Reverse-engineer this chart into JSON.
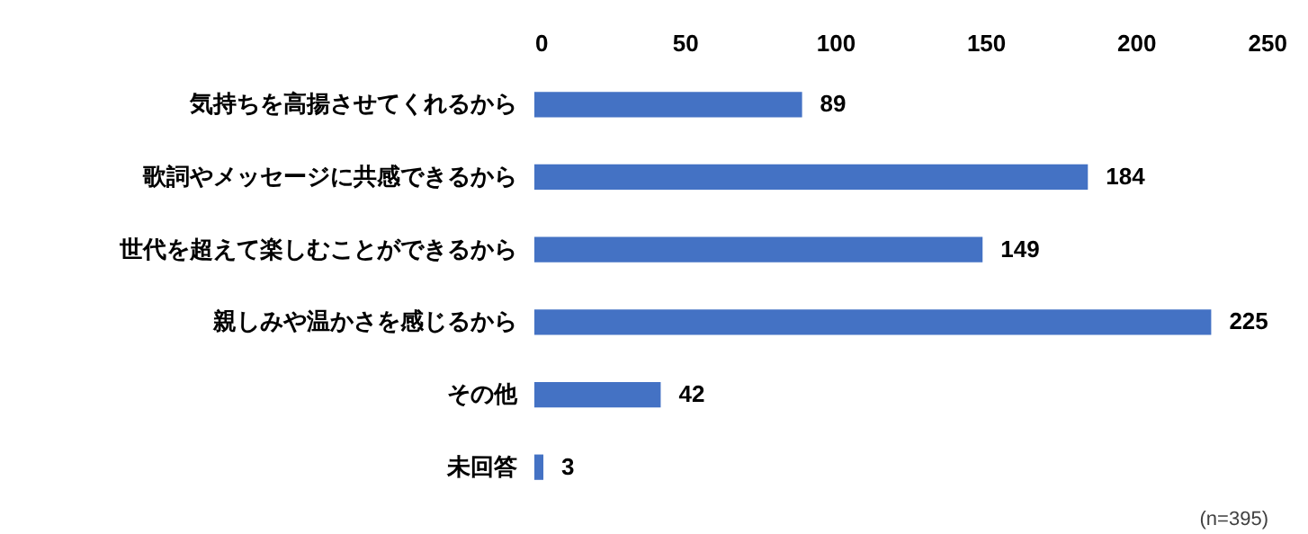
{
  "chart_data": {
    "type": "bar",
    "orientation": "horizontal",
    "categories": [
      "気持ちを高揚させてくれるから",
      "歌詞やメッセージに共感できるから",
      "世代を超えて楽しむことができるから",
      "親しみや温かさを感じるから",
      "その他",
      "未回答"
    ],
    "values": [
      89,
      184,
      149,
      225,
      42,
      3
    ],
    "color": "#4472c4",
    "xlim": [
      0,
      250
    ],
    "xticks": [
      0,
      50,
      100,
      150,
      200,
      250
    ],
    "grid": false,
    "data_labels": true,
    "annotations": [
      "(n=395)"
    ]
  }
}
